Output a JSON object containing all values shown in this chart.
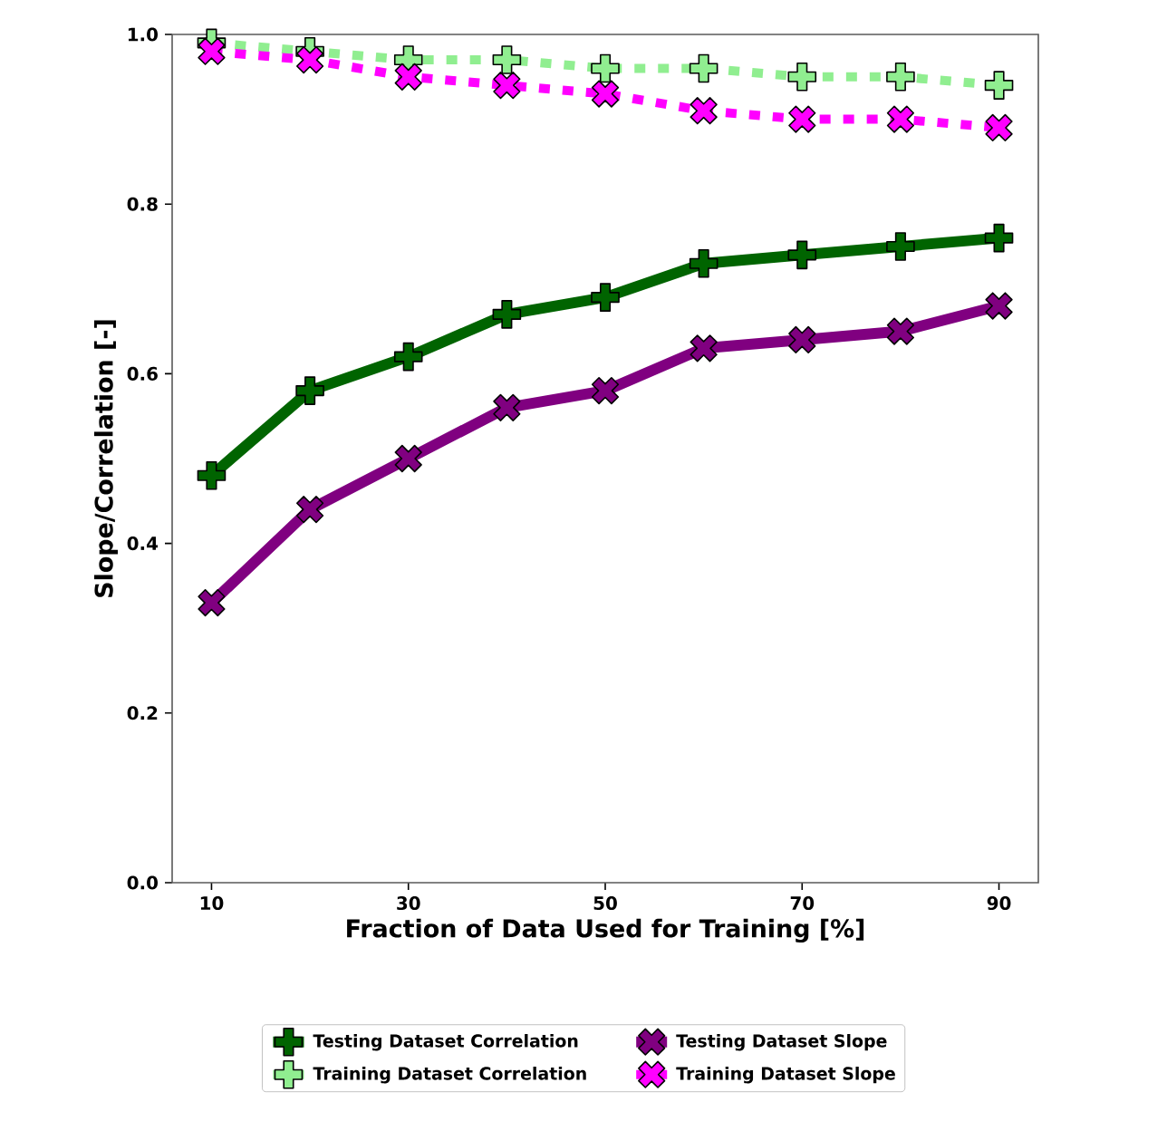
{
  "chart_data": {
    "type": "line",
    "xlabel": "Fraction of Data Used for Training [%]",
    "ylabel": "Slope/Correlation [-]",
    "x": [
      10,
      20,
      30,
      40,
      50,
      60,
      70,
      80,
      90
    ],
    "series": [
      {
        "name": "Testing Dataset Correlation",
        "color": "#006400",
        "marker": "plus",
        "line_style": "solid",
        "values": [
          0.48,
          0.58,
          0.62,
          0.67,
          0.69,
          0.73,
          0.74,
          0.75,
          0.76
        ]
      },
      {
        "name": "Training Dataset Correlation",
        "color": "#90ee90",
        "marker": "plus",
        "line_style": "dotted",
        "values": [
          0.99,
          0.98,
          0.97,
          0.97,
          0.96,
          0.96,
          0.95,
          0.95,
          0.94
        ]
      },
      {
        "name": "Testing Dataset Slope",
        "color": "#800080",
        "marker": "cross",
        "line_style": "solid",
        "values": [
          0.33,
          0.44,
          0.5,
          0.56,
          0.58,
          0.63,
          0.64,
          0.65,
          0.68
        ]
      },
      {
        "name": "Training Dataset Slope",
        "color": "#ff00ff",
        "marker": "cross",
        "line_style": "dotted",
        "values": [
          0.98,
          0.97,
          0.95,
          0.94,
          0.93,
          0.91,
          0.9,
          0.9,
          0.89
        ]
      }
    ],
    "xlim": [
      6,
      94
    ],
    "xticks": [
      10,
      30,
      50,
      70,
      90
    ],
    "ylim": [
      0,
      1
    ],
    "yticks": [
      {
        "value": 0,
        "label": "0.0"
      },
      {
        "value": 0.2,
        "label": "0.2"
      },
      {
        "value": 0.4,
        "label": "0.4"
      },
      {
        "value": 0.6,
        "label": "0.6"
      },
      {
        "value": 0.8,
        "label": "0.8"
      },
      {
        "value": 1,
        "label": "1.0"
      }
    ],
    "grid": false,
    "legend": "bottom"
  }
}
